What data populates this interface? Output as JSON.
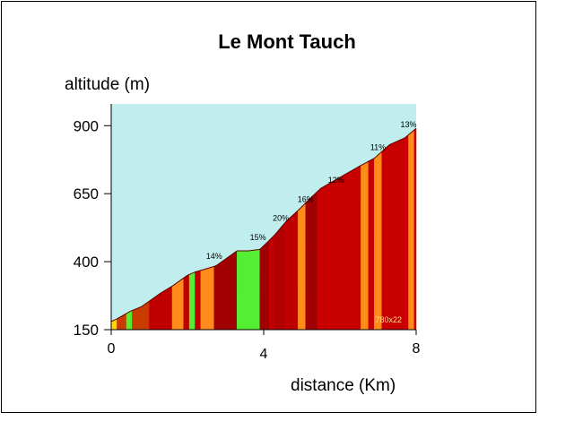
{
  "chart_data": {
    "type": "area",
    "title": "Le Mont Tauch",
    "ylabel": "altitude (m)",
    "xlabel": "distance (Km)",
    "xlim": [
      0,
      8
    ],
    "ylim": [
      150,
      980
    ],
    "x_ticks": [
      0,
      4,
      8
    ],
    "y_ticks": [
      150,
      400,
      650,
      900
    ],
    "plot_background": "#c0eeee",
    "grid": false,
    "profile": {
      "x": [
        0,
        0.15,
        0.5,
        0.8,
        1.0,
        1.3,
        1.6,
        2.0,
        2.2,
        2.45,
        2.75,
        3.0,
        3.3,
        3.6,
        3.9,
        4.1,
        4.3,
        4.6,
        4.9,
        5.2,
        5.5,
        6.0,
        6.5,
        6.9,
        7.3,
        7.7,
        8.0
      ],
      "y": [
        180,
        190,
        218,
        235,
        255,
        285,
        310,
        350,
        362,
        372,
        385,
        410,
        440,
        440,
        445,
        472,
        500,
        550,
        588,
        630,
        670,
        710,
        750,
        780,
        830,
        855,
        890
      ]
    },
    "segments": [
      {
        "from": 0.0,
        "to": 0.15,
        "color": "#ffd700"
      },
      {
        "from": 0.15,
        "to": 0.4,
        "color": "#c83c00"
      },
      {
        "from": 0.4,
        "to": 0.55,
        "color": "#55ee33"
      },
      {
        "from": 0.55,
        "to": 1.0,
        "color": "#c83c00"
      },
      {
        "from": 1.0,
        "to": 1.6,
        "color": "#c00000"
      },
      {
        "from": 1.6,
        "to": 1.9,
        "color": "#ff8c1a"
      },
      {
        "from": 1.9,
        "to": 2.05,
        "color": "#c00000"
      },
      {
        "from": 2.05,
        "to": 2.2,
        "color": "#55ee33"
      },
      {
        "from": 2.2,
        "to": 2.35,
        "color": "#c00000"
      },
      {
        "from": 2.35,
        "to": 2.7,
        "color": "#ff8c1a"
      },
      {
        "from": 2.7,
        "to": 3.3,
        "color": "#a00000"
      },
      {
        "from": 3.3,
        "to": 3.9,
        "color": "#55ee33"
      },
      {
        "from": 3.9,
        "to": 4.15,
        "color": "#a00000"
      },
      {
        "from": 4.15,
        "to": 4.3,
        "color": "#c00000"
      },
      {
        "from": 4.3,
        "to": 4.55,
        "color": "#b00000"
      },
      {
        "from": 4.55,
        "to": 4.9,
        "color": "#c00000"
      },
      {
        "from": 4.9,
        "to": 5.1,
        "color": "#ff8c1a"
      },
      {
        "from": 5.1,
        "to": 5.4,
        "color": "#a00000"
      },
      {
        "from": 5.4,
        "to": 6.55,
        "color": "#c80000"
      },
      {
        "from": 6.55,
        "to": 6.75,
        "color": "#ff8c1a"
      },
      {
        "from": 6.75,
        "to": 6.9,
        "color": "#c80000"
      },
      {
        "from": 6.9,
        "to": 7.1,
        "color": "#ff8c1a"
      },
      {
        "from": 7.1,
        "to": 7.8,
        "color": "#c80000"
      },
      {
        "from": 7.8,
        "to": 7.95,
        "color": "#ff8c1a"
      },
      {
        "from": 7.95,
        "to": 8.0,
        "color": "#c80000"
      }
    ],
    "annotations": [
      {
        "text": "14%",
        "x": 2.7,
        "y": 410
      },
      {
        "text": "15%",
        "x": 3.85,
        "y": 480
      },
      {
        "text": "20%",
        "x": 4.45,
        "y": 550
      },
      {
        "text": "16%",
        "x": 5.1,
        "y": 620
      },
      {
        "text": "12%",
        "x": 5.9,
        "y": 690
      },
      {
        "text": "11%",
        "x": 7.0,
        "y": 810
      },
      {
        "text": "13%",
        "x": 7.8,
        "y": 895
      }
    ],
    "watermark": "780x22"
  }
}
